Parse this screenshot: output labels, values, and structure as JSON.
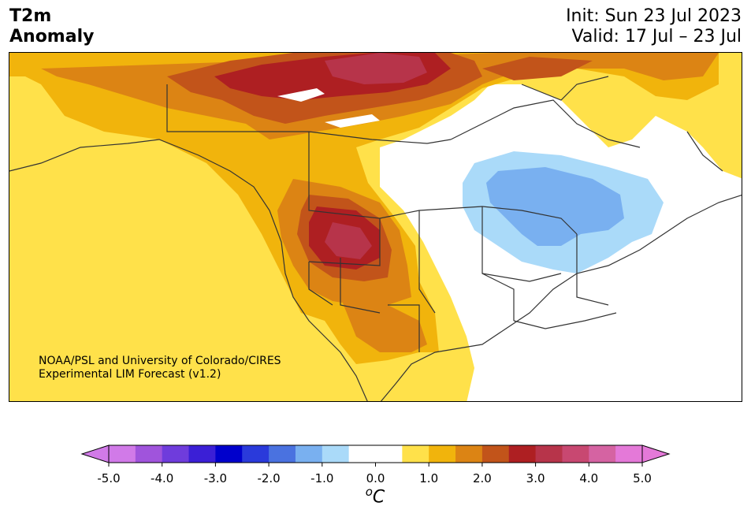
{
  "header": {
    "title_line1": "T2m",
    "title_line2": "Anomaly",
    "init": "Init: Sun 23 Jul 2023",
    "valid": "Valid: 17 Jul – 23 Jul"
  },
  "credit": {
    "line1": "NOAA/PSL and University of Colorado/CIRES",
    "line2": "Experimental LIM Forecast (v1.2)"
  },
  "colorbar": {
    "unit_base": "C",
    "unit_sup": "o",
    "ticks": [
      "-5.0",
      "-4.0",
      "-3.0",
      "-2.0",
      "-1.0",
      "0.0",
      "1.0",
      "2.0",
      "3.0",
      "4.0",
      "5.0"
    ],
    "colors": [
      "#d17ae8",
      "#a054dc",
      "#6f3cdc",
      "#3b1fd6",
      "#0000cc",
      "#2a3adb",
      "#4a72e0",
      "#79b0f0",
      "#aadaf9",
      "#ffffff",
      "#ffffff",
      "#ffe14a",
      "#f1b40c",
      "#dc8414",
      "#c2541a",
      "#ae1f22",
      "#b7344a",
      "#c84871",
      "#d563a2",
      "#e479d8"
    ],
    "extend_low": "#d17ae8",
    "extend_high": "#e479d8"
  }
}
